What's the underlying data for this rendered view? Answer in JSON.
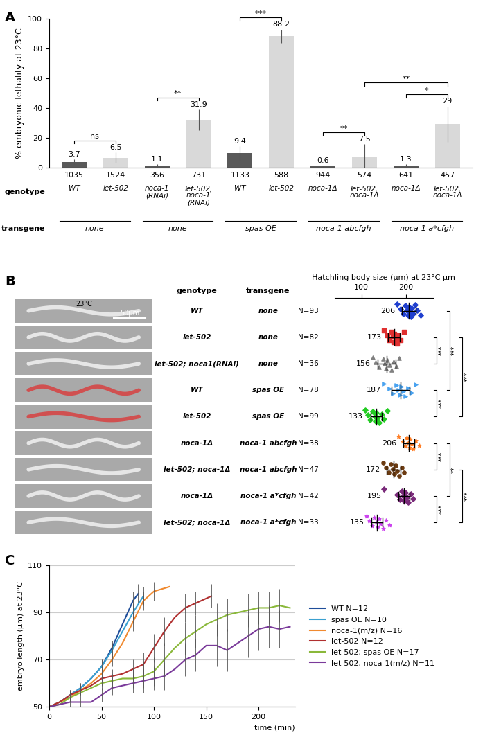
{
  "chart_data": [
    {
      "type": "bar",
      "panel_label": "A",
      "ylabel": "% embryonic lethality at 23°C",
      "ylim": [
        0,
        100
      ],
      "yticks": [
        0,
        20,
        40,
        60,
        80,
        100
      ],
      "categories": [
        "WT",
        "let-502",
        "noca-1\n(RNAi)",
        "let-502;\nnoca-1\n(RNAi)",
        "WT",
        "let-502",
        "noca-1Δ",
        "let-502;\nnoca-1Δ",
        "noca-1Δ",
        "let-502;\nnoca-1Δ"
      ],
      "values": [
        3.7,
        6.5,
        1.1,
        31.9,
        9.4,
        88.2,
        0.6,
        7.5,
        1.3,
        29
      ],
      "errors": [
        1.5,
        3.5,
        1,
        7,
        5,
        4.5,
        0.5,
        8,
        1,
        12
      ],
      "counts": [
        1035,
        1524,
        356,
        731,
        1133,
        588,
        944,
        574,
        641,
        457
      ],
      "colors": [
        "#595959",
        "#d9d9d9",
        "#595959",
        "#d9d9d9",
        "#595959",
        "#d9d9d9",
        "#595959",
        "#d9d9d9",
        "#595959",
        "#d9d9d9"
      ],
      "data_labels": true,
      "row_labels": {
        "categories": "genotype",
        "groups": "transgene"
      },
      "groups": [
        {
          "label": "none",
          "members": [
            0,
            1
          ]
        },
        {
          "label": "none",
          "members": [
            2,
            3
          ]
        },
        {
          "label": "spas OE",
          "members": [
            4,
            5
          ]
        },
        {
          "label": "noca-1 abcfgh",
          "members": [
            6,
            7
          ]
        },
        {
          "label": "noca-1 a*cfgh",
          "members": [
            8,
            9
          ]
        }
      ],
      "significance": [
        {
          "pair": [
            0,
            1
          ],
          "label": "ns"
        },
        {
          "pair": [
            2,
            3
          ],
          "label": "**"
        },
        {
          "pair": [
            4,
            5
          ],
          "label": "***"
        },
        {
          "pair": [
            6,
            7
          ],
          "label": "**"
        },
        {
          "pair": [
            8,
            9
          ],
          "label": "*"
        },
        {
          "pair": [
            7,
            9
          ],
          "label": "**"
        }
      ]
    },
    {
      "type": "dot_plot",
      "panel_label": "B",
      "orientation": "horizontal",
      "xlabel": "Hatchling body size (μm) at 23°C μm",
      "xlim": [
        40,
        260
      ],
      "xticks": [
        100,
        200
      ],
      "tick_labels": "x",
      "column_headers": {
        "genotype": "genotype",
        "transgene": "transgene"
      },
      "image_annotations": {
        "temperature": "23°C",
        "scale_bar": "50μm"
      },
      "groups": [
        {
          "genotype": "WT",
          "transgene": "none",
          "n_label": "N=93",
          "mean": 206,
          "sd": 15,
          "color": "#1f3fcf",
          "marker": "diamond",
          "points": [
            180,
            188,
            194,
            198,
            201,
            204,
            206,
            208,
            210,
            213,
            216,
            220,
            225,
            232
          ]
        },
        {
          "genotype": "let-502",
          "transgene": "none",
          "n_label": "N=82",
          "mean": 173,
          "sd": 13,
          "color": "#e03030",
          "marker": "square",
          "points": [
            150,
            158,
            163,
            167,
            170,
            172,
            174,
            176,
            179,
            183,
            188,
            195
          ]
        },
        {
          "genotype": "let-502; noca1(RNAi)",
          "transgene": "none",
          "n_label": "N=36",
          "mean": 156,
          "sd": 20,
          "color": "#808080",
          "marker": "triangle",
          "points": [
            125,
            132,
            140,
            148,
            152,
            155,
            158,
            162,
            167,
            172,
            178,
            185
          ]
        },
        {
          "genotype": "WT",
          "transgene": "spas OE",
          "n_label": "N=78",
          "mean": 187,
          "sd": 20,
          "color": "#4aa3f0",
          "marker": "triangle_right",
          "points": [
            150,
            162,
            170,
            178,
            183,
            186,
            189,
            193,
            198,
            205,
            212,
            222
          ]
        },
        {
          "genotype": "let-502",
          "transgene": "spas OE",
          "n_label": "N=99",
          "mean": 133,
          "sd": 12,
          "color": "#22cc22",
          "marker": "diamond",
          "points": [
            108,
            115,
            120,
            126,
            130,
            132,
            134,
            137,
            140,
            145,
            150,
            158
          ]
        },
        {
          "genotype": "noca-1Δ",
          "transgene": "noca-1 abcfgh",
          "n_label": "N=38",
          "mean": 206,
          "sd": 12,
          "color": "#ff7f27",
          "marker": "star",
          "points": [
            183,
            192,
            198,
            202,
            205,
            207,
            209,
            212,
            216,
            222,
            230
          ]
        },
        {
          "genotype": "let-502; noca-1Δ",
          "transgene": "noca-1 abcfgh",
          "n_label": "N=47",
          "mean": 172,
          "sd": 15,
          "color": "#6b3a10",
          "marker": "circle",
          "points": [
            148,
            155,
            161,
            166,
            170,
            173,
            176,
            180,
            185,
            190,
            196
          ]
        },
        {
          "genotype": "noca-1Δ",
          "transgene": "noca-1 a*cfgh",
          "n_label": "N=42",
          "mean": 195,
          "sd": 12,
          "color": "#7a2a7a",
          "marker": "diamond",
          "points": [
            150,
            180,
            186,
            190,
            193,
            196,
            198,
            201,
            205,
            210,
            215
          ]
        },
        {
          "genotype": "let-502; noca-1Δ",
          "transgene": "noca-1 a*cfgh",
          "n_label": "N=33",
          "mean": 135,
          "sd": 12,
          "color": "#cc44ee",
          "marker": "star",
          "points": [
            112,
            118,
            124,
            129,
            133,
            136,
            139,
            142,
            148,
            155,
            162
          ]
        }
      ],
      "significance": [
        {
          "pair": [
            1,
            2
          ],
          "label": "***"
        },
        {
          "pair": [
            3,
            4
          ],
          "label": "***"
        },
        {
          "pair": [
            0,
            3
          ],
          "label": "***"
        },
        {
          "pair": [
            1,
            4
          ],
          "label": "***"
        },
        {
          "pair": [
            5,
            6
          ],
          "label": "***"
        },
        {
          "pair": [
            7,
            8
          ],
          "label": "***"
        },
        {
          "pair": [
            5,
            7
          ],
          "label": "**"
        },
        {
          "pair": [
            6,
            8
          ],
          "label": "***"
        }
      ]
    },
    {
      "type": "line",
      "panel_label": "C",
      "xlabel": "time (min)",
      "ylabel": "embryo length (µm) at 23°C",
      "xlim": [
        0,
        235
      ],
      "xticks": [
        0,
        50,
        100,
        150,
        200
      ],
      "ylim": [
        50,
        110
      ],
      "yticks": [
        50,
        70,
        90,
        110
      ],
      "grid": true,
      "legend": "center left",
      "series": [
        {
          "name": "WT N=12",
          "color": "#1f4e9a",
          "x": [
            0,
            10,
            20,
            30,
            40,
            50,
            60,
            70,
            80,
            85
          ],
          "values": [
            50,
            52,
            55,
            58,
            62,
            67,
            75,
            85,
            95,
            98
          ],
          "errors": [
            1,
            1,
            2,
            2,
            2,
            3,
            3,
            3,
            4,
            4
          ]
        },
        {
          "name": "spas OE N=10",
          "color": "#3aa0d0",
          "x": [
            0,
            10,
            20,
            30,
            40,
            50,
            60,
            70,
            80,
            90
          ],
          "values": [
            50,
            52,
            55,
            58,
            62,
            67,
            74,
            82,
            90,
            97
          ],
          "errors": [
            1,
            1,
            2,
            2,
            3,
            3,
            3,
            4,
            4,
            4
          ]
        },
        {
          "name": "noca-1(m/z) N=16",
          "color": "#f08a30",
          "x": [
            0,
            10,
            20,
            30,
            40,
            50,
            60,
            70,
            80,
            90,
            100,
            115
          ],
          "values": [
            50,
            52,
            54,
            57,
            60,
            64,
            70,
            77,
            86,
            95,
            99,
            101
          ],
          "errors": [
            1,
            1,
            2,
            2,
            2,
            3,
            3,
            4,
            4,
            4,
            4,
            4
          ]
        },
        {
          "name": "let-502 N=12",
          "color": "#b03030",
          "x": [
            0,
            10,
            20,
            30,
            40,
            50,
            60,
            70,
            80,
            90,
            100,
            110,
            120,
            130,
            140,
            150,
            155
          ],
          "values": [
            50,
            52,
            55,
            57,
            59,
            62,
            63,
            64,
            66,
            68,
            75,
            82,
            88,
            92,
            94,
            96,
            97
          ],
          "errors": [
            1,
            2,
            2,
            2,
            3,
            3,
            3,
            4,
            4,
            5,
            6,
            6,
            6,
            6,
            5,
            5,
            5
          ]
        },
        {
          "name": "let-502; spas OE N=17",
          "color": "#8ab83a",
          "x": [
            0,
            10,
            20,
            30,
            40,
            50,
            60,
            70,
            80,
            90,
            100,
            110,
            120,
            130,
            140,
            150,
            160,
            170,
            180,
            190,
            200,
            210,
            220,
            230
          ],
          "values": [
            50,
            51,
            54,
            56,
            58,
            60,
            61,
            62,
            62,
            63,
            65,
            70,
            75,
            79,
            82,
            85,
            87,
            89,
            90,
            91,
            92,
            92,
            93,
            92
          ],
          "errors": [
            1,
            1,
            2,
            2,
            3,
            3,
            3,
            4,
            4,
            5,
            6,
            7,
            7,
            7,
            7,
            7,
            7,
            7,
            7,
            7,
            7,
            7,
            7,
            7
          ]
        },
        {
          "name": "let-502; noca-1(m/z) N=11",
          "color": "#7a3a9a",
          "x": [
            0,
            10,
            20,
            30,
            40,
            50,
            60,
            70,
            80,
            90,
            100,
            110,
            120,
            130,
            140,
            150,
            160,
            170,
            180,
            190,
            200,
            210,
            220,
            230
          ],
          "values": [
            50,
            51,
            52,
            52,
            52,
            55,
            58,
            59,
            60,
            61,
            62,
            63,
            66,
            70,
            72,
            76,
            76,
            74,
            77,
            80,
            83,
            84,
            83,
            84
          ],
          "errors": [
            1,
            1,
            2,
            2,
            2,
            3,
            3,
            4,
            4,
            5,
            5,
            6,
            6,
            7,
            7,
            8,
            9,
            9,
            9,
            9,
            9,
            9,
            8,
            8
          ]
        }
      ]
    }
  ]
}
